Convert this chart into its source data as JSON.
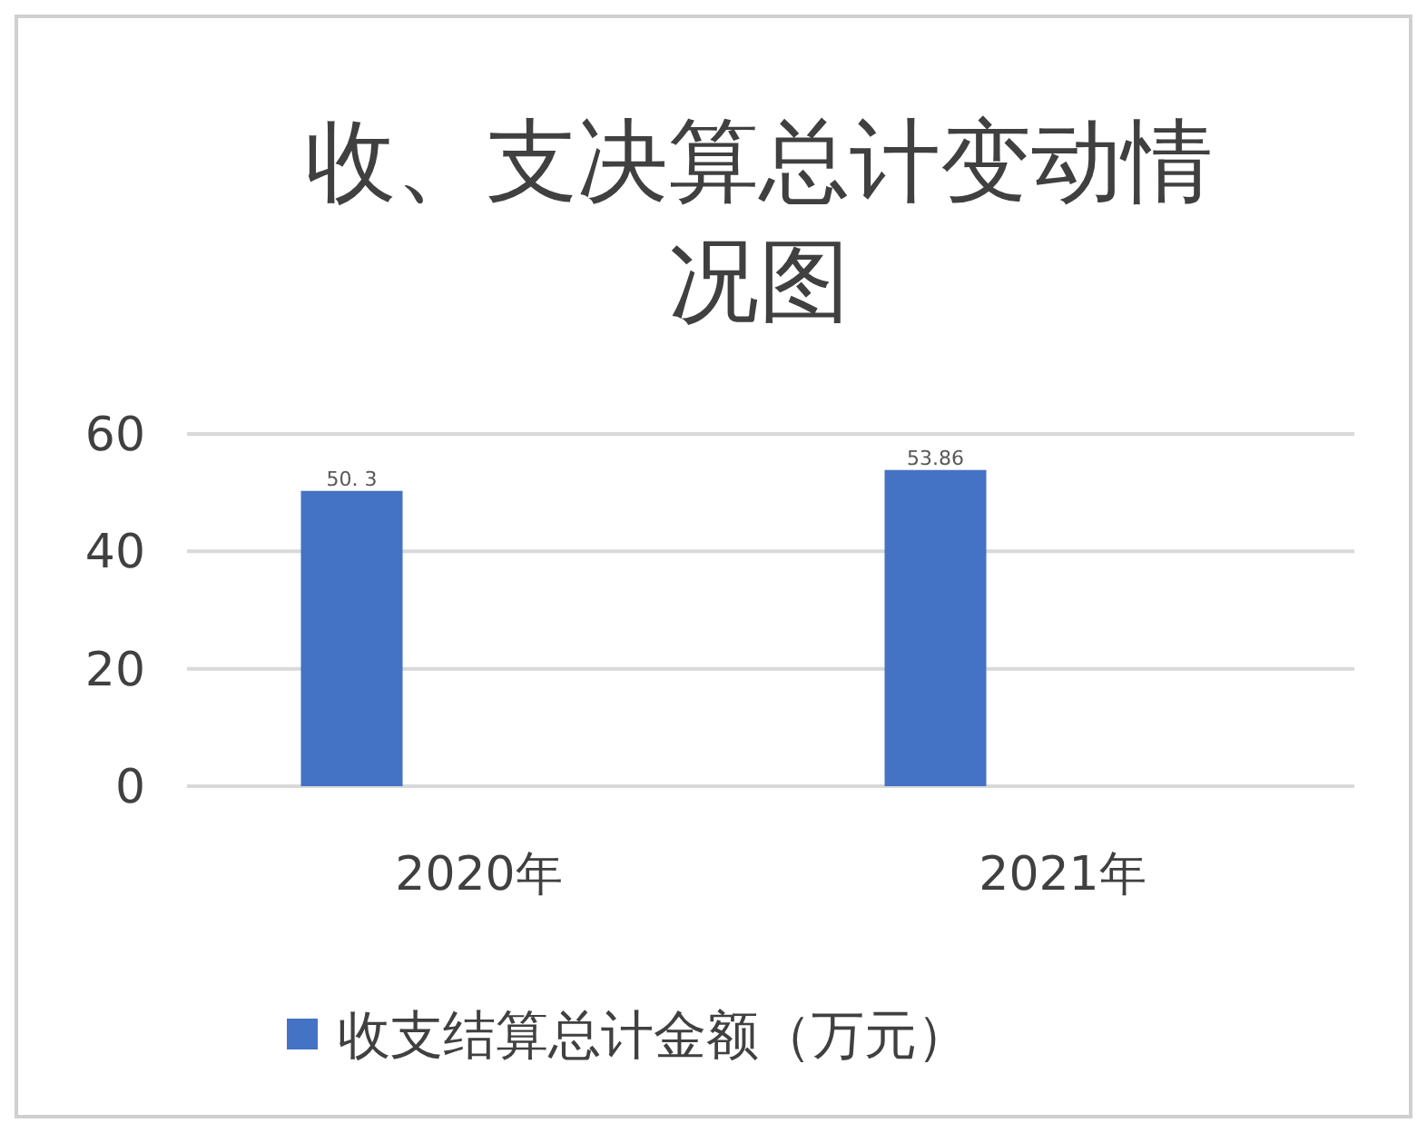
{
  "chart_data": {
    "type": "bar",
    "title": "收、支决算总计变动情况图",
    "categories": [
      "2020年",
      "2021年"
    ],
    "series": [
      {
        "name": "收支结算总计金额（万元）",
        "color": "#4472c4",
        "values": [
          50.3,
          53.86
        ],
        "value_labels": [
          "50. 3",
          "53.86"
        ]
      }
    ],
    "ylim": [
      0,
      60
    ],
    "yticks": [
      0,
      20,
      40,
      60
    ],
    "grid": "y",
    "legend": "bottom"
  }
}
